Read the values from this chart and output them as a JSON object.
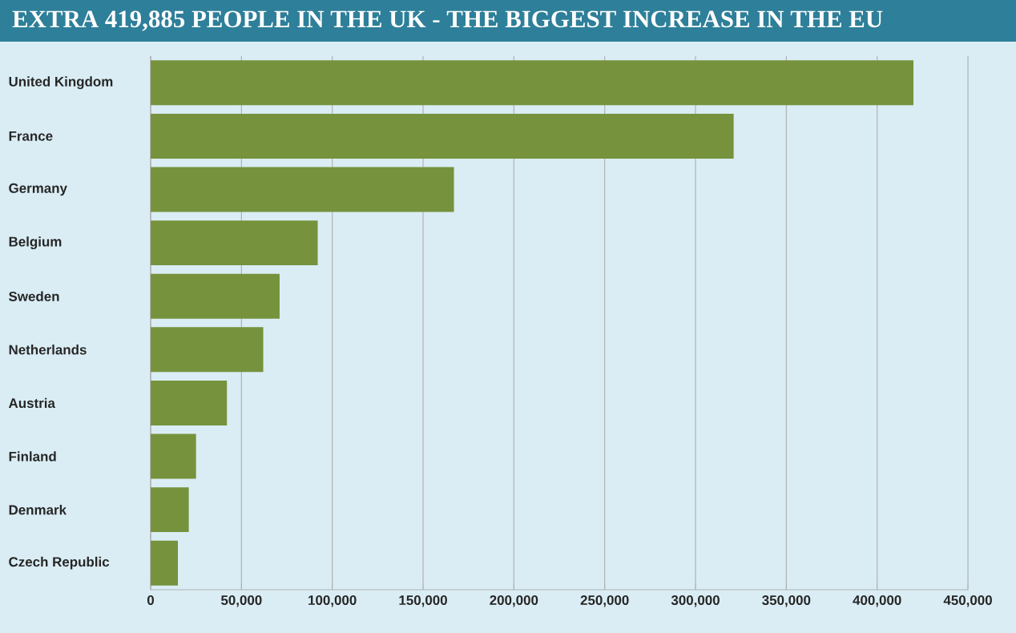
{
  "chart_data": {
    "type": "bar",
    "orientation": "horizontal",
    "title": "EXTRA 419,885 PEOPLE  IN THE UK - THE BIGGEST INCREASE IN THE EU",
    "categories": [
      "United Kingdom",
      "France",
      "Germany",
      "Belgium",
      "Sweden",
      "Netherlands",
      "Austria",
      "Finland",
      "Denmark",
      "Czech Republic"
    ],
    "values": [
      420000,
      321000,
      167000,
      92000,
      71000,
      62000,
      42000,
      25000,
      21000,
      15000
    ],
    "color": "#76923c",
    "xlim": [
      0,
      450000
    ],
    "xticks": [
      0,
      {
        "value": 50000,
        "label": "50,000"
      },
      {
        "value": 100000,
        "label": "100,000"
      },
      {
        "value": 150000,
        "label": "150,000"
      },
      {
        "value": 200000,
        "label": "200,000"
      },
      {
        "value": 250000,
        "label": "250,000"
      },
      {
        "value": 300000,
        "label": "300,000"
      },
      {
        "value": 350000,
        "label": "350,000"
      },
      {
        "value": 400000,
        "label": "400,000"
      },
      {
        "value": 450000,
        "label": "450,000"
      }
    ],
    "grid": "x"
  }
}
